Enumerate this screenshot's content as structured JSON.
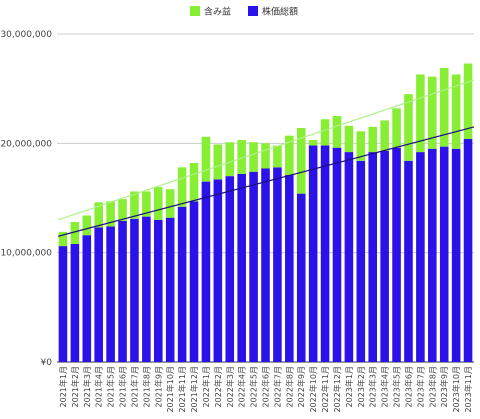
{
  "chart_data": {
    "type": "bar",
    "stacked": true,
    "categories": [
      "2021年1月",
      "2021年2月",
      "2021年3月",
      "2021年4月",
      "2021年5月",
      "2021年6月",
      "2021年7月",
      "2021年8月",
      "2021年9月",
      "2021年10月",
      "2021年11月",
      "2021年12月",
      "2022年1月",
      "2022年2月",
      "2022年3月",
      "2022年4月",
      "2022年5月",
      "2022年6月",
      "2022年7月",
      "2022年8月",
      "2022年9月",
      "2022年10月",
      "2022年11月",
      "2022年12月",
      "2023年1月",
      "2023年2月",
      "2023年3月",
      "2023年4月",
      "2023年5月",
      "2023年6月",
      "2023年7月",
      "2023年8月",
      "2023年9月",
      "2023年10月",
      "2023年11月"
    ],
    "series": [
      {
        "name": "株価総額",
        "color": "#2b12e8",
        "values": [
          10600000,
          10800000,
          11600000,
          12300000,
          12400000,
          12900000,
          13100000,
          13300000,
          13000000,
          13200000,
          14200000,
          14700000,
          16500000,
          16700000,
          17000000,
          17200000,
          17400000,
          17700000,
          17800000,
          17100000,
          15400000,
          19800000,
          19800000,
          19600000,
          19200000,
          18400000,
          19200000,
          19300000,
          19600000,
          18400000,
          19200000,
          19500000,
          19700000,
          19500000,
          20400000
        ]
      },
      {
        "name": "含み益",
        "color": "#88ee33",
        "values": [
          1300000,
          2000000,
          1800000,
          2300000,
          2300000,
          2000000,
          2500000,
          2300000,
          3000000,
          2600000,
          3600000,
          3500000,
          4100000,
          3200000,
          3100000,
          3100000,
          2700000,
          2300000,
          2000000,
          3600000,
          6000000,
          500000,
          2400000,
          2900000,
          2400000,
          2700000,
          2300000,
          2800000,
          3600000,
          6100000,
          7100000,
          6600000,
          7200000,
          6800000,
          6900000
        ]
      }
    ],
    "trendlines": [
      {
        "series": "総額",
        "color": "#aef08a",
        "start": 13000000,
        "end": 25800000
      },
      {
        "series": "株価総額",
        "color": "#1a0f7a",
        "start": 11500000,
        "end": 21500000
      }
    ],
    "ylim": [
      0,
      30000000
    ],
    "yticks": [
      0,
      10000000,
      20000000,
      30000000
    ],
    "ytick_labels": [
      "¥0",
      "¥10,000,000",
      "¥20,000,000",
      "¥30,000,000"
    ],
    "grid": true,
    "legend_position": "top"
  }
}
